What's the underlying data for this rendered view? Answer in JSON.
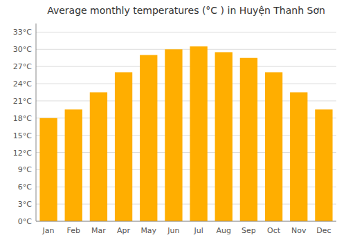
{
  "chart_data": {
    "type": "bar",
    "title": "Average monthly temperatures (°C ) in Huyện Thanh Sơn",
    "categories": [
      "Jan",
      "Feb",
      "Mar",
      "Apr",
      "May",
      "Jun",
      "Jul",
      "Aug",
      "Sep",
      "Oct",
      "Nov",
      "Dec"
    ],
    "values": [
      18.0,
      19.5,
      22.5,
      26.0,
      29.0,
      30.0,
      30.5,
      29.5,
      28.5,
      26.0,
      22.5,
      19.5
    ],
    "color": "#FFAE00",
    "ylim": [
      0,
      34.5
    ],
    "yticks": [
      {
        "value": 0,
        "label": "0°C"
      },
      {
        "value": 3,
        "label": "3°C"
      },
      {
        "value": 6,
        "label": "6°C"
      },
      {
        "value": 9,
        "label": "9°C"
      },
      {
        "value": 12,
        "label": "12°C"
      },
      {
        "value": 15,
        "label": "15°C"
      },
      {
        "value": 18,
        "label": "18°C"
      },
      {
        "value": 21,
        "label": "21°C"
      },
      {
        "value": 24,
        "label": "24°C"
      },
      {
        "value": 27,
        "label": "27°C"
      },
      {
        "value": 30,
        "label": "30°C"
      },
      {
        "value": 33,
        "label": "33°C"
      }
    ],
    "grid": true
  }
}
